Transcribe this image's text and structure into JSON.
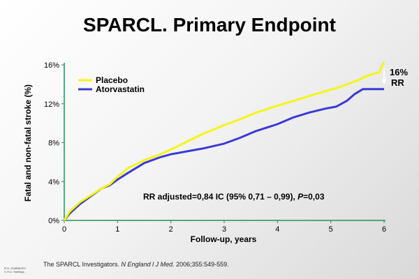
{
  "title": "SPARCL. Primary Endpoint",
  "colors": {
    "placebo": "#f5f518",
    "atorvastatin": "#3a3ad6",
    "axis": "#2e8b57",
    "rr_arrow": "#ffffff"
  },
  "chart_data": {
    "type": "line",
    "xlabel": "Follow-up, years",
    "ylabel": "Fatal and non-fatal stroke (%)",
    "xlim": [
      0,
      6
    ],
    "ylim": [
      0,
      16
    ],
    "x_ticks": [
      "0",
      "1",
      "2",
      "3",
      "4",
      "5",
      "6"
    ],
    "y_ticks": [
      "0%",
      "4%",
      "8%",
      "12%",
      "16%"
    ],
    "legend_position": "top-left",
    "series": [
      {
        "name": "Placebo",
        "x": [
          0,
          0.1,
          0.3,
          0.5,
          0.7,
          0.85,
          1.0,
          1.2,
          1.5,
          1.8,
          2.0,
          2.3,
          2.6,
          3.0,
          3.3,
          3.6,
          4.0,
          4.3,
          4.6,
          4.9,
          5.1,
          5.3,
          5.5,
          5.7,
          5.8,
          5.9,
          5.95,
          6.0
        ],
        "y": [
          0,
          0.9,
          1.9,
          2.6,
          3.3,
          3.7,
          4.5,
          5.4,
          6.2,
          6.8,
          7.3,
          8.1,
          8.9,
          9.8,
          10.4,
          11.1,
          11.8,
          12.3,
          12.8,
          13.3,
          13.6,
          14.0,
          14.4,
          14.9,
          15.1,
          15.2,
          15.8,
          16.3
        ]
      },
      {
        "name": "Atorvastatin",
        "x": [
          0,
          0.1,
          0.3,
          0.5,
          0.7,
          0.85,
          1.0,
          1.2,
          1.5,
          1.8,
          2.0,
          2.3,
          2.6,
          3.0,
          3.3,
          3.6,
          4.0,
          4.3,
          4.6,
          4.9,
          5.1,
          5.2,
          5.3,
          5.45,
          5.6,
          5.8,
          6.0
        ],
        "y": [
          0,
          0.7,
          1.7,
          2.5,
          3.3,
          3.6,
          4.2,
          4.9,
          5.9,
          6.5,
          6.8,
          7.1,
          7.4,
          7.9,
          8.5,
          9.2,
          9.9,
          10.6,
          11.1,
          11.5,
          11.7,
          12.0,
          12.3,
          13.0,
          13.5,
          13.5,
          13.5
        ]
      }
    ],
    "annotation": {
      "prefix": "RR adjusted=0,84 IC (95% 0,71 – 0,99), ",
      "p_symbol": "P",
      "suffix": "=0,03"
    },
    "rr_label": {
      "pct": "16%",
      "text": "RR"
    }
  },
  "citation": {
    "prefix": "The SPARCL Investigators. ",
    "journal": "N England l J Med.",
    "suffix": " 2006;355:549-559."
  },
  "credit": {
    "line1": "R.G. ZUMNAYEV",
    "line2": "C.H.U. Santiago"
  }
}
